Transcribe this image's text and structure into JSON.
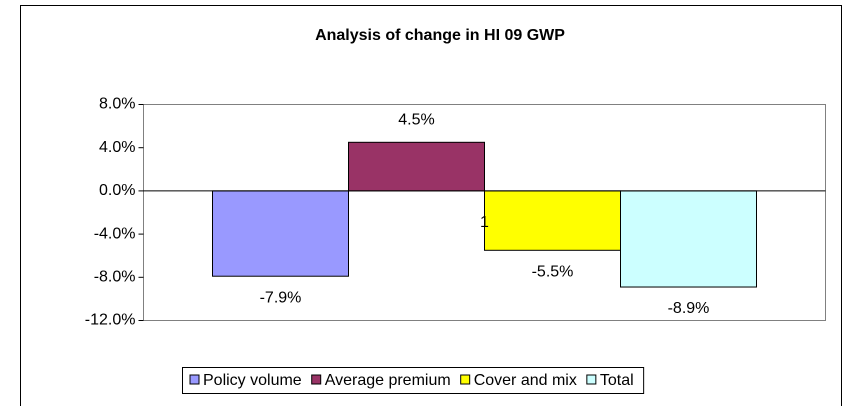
{
  "chart_data": {
    "type": "bar",
    "title": "Analysis of change in HI 09 GWP",
    "categories": [
      "1"
    ],
    "series": [
      {
        "name": "Policy volume",
        "color": "#9999ff",
        "values": [
          -7.9
        ],
        "value_labels": [
          "-7.9%"
        ]
      },
      {
        "name": "Average premium",
        "color": "#993366",
        "values": [
          4.5
        ],
        "value_labels": [
          "4.5%"
        ]
      },
      {
        "name": "Cover and mix",
        "color": "#ffff00",
        "values": [
          -5.5
        ],
        "value_labels": [
          "-5.5%"
        ]
      },
      {
        "name": "Total",
        "color": "#ccffff",
        "values": [
          -8.9
        ],
        "value_labels": [
          "-8.9%"
        ]
      }
    ],
    "ylim": [
      -12,
      8
    ],
    "yticks": [
      {
        "value": -12,
        "label": "-12.0%"
      },
      {
        "value": -8,
        "label": "-8.0%"
      },
      {
        "value": -4,
        "label": "-4.0%"
      },
      {
        "value": 0,
        "label": "0.0%"
      },
      {
        "value": 4,
        "label": "4.0%"
      },
      {
        "value": 8,
        "label": "8.0%"
      }
    ],
    "legend": "bottom"
  }
}
